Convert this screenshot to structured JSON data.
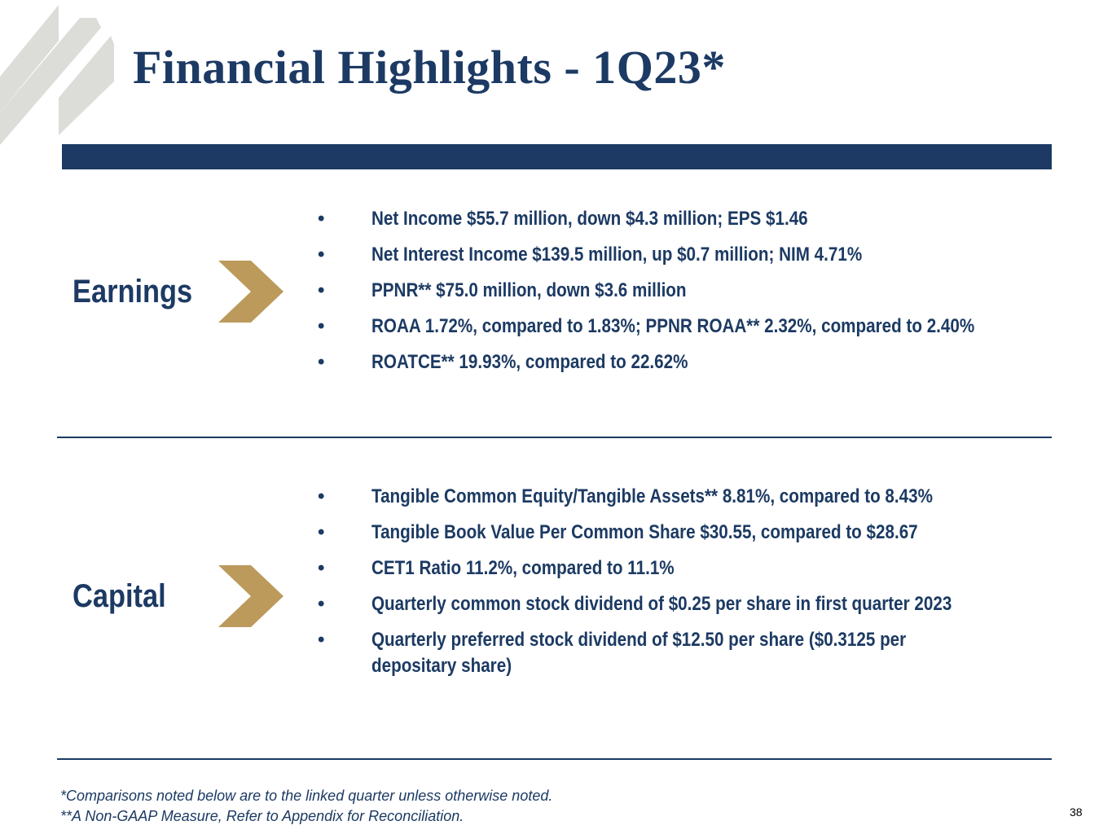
{
  "slide": {
    "title": "Financial Highlights - 1Q23*",
    "page_number": "38"
  },
  "sections": {
    "earnings": {
      "label": "Earnings",
      "bullets": [
        "Net Income $55.7 million, down $4.3 million; EPS $1.46",
        "Net Interest Income $139.5 million, up $0.7 million; NIM 4.71%",
        "PPNR** $75.0 million, down $3.6 million",
        "ROAA 1.72%, compared to 1.83%; PPNR ROAA** 2.32%, compared to 2.40%",
        "ROATCE** 19.93%, compared to 22.62%"
      ]
    },
    "capital": {
      "label": "Capital",
      "bullets": [
        "Tangible Common Equity/Tangible Assets** 8.81%, compared to 8.43%",
        "Tangible Book Value Per Common Share $30.55, compared to $28.67",
        "CET1 Ratio 11.2%, compared to 11.1%",
        "Quarterly common stock dividend of $0.25 per share in first quarter 2023",
        "Quarterly preferred stock dividend of $12.50 per share ($0.3125 per depositary share)"
      ]
    }
  },
  "footnotes": {
    "comparison": "*Comparisons noted below are to the linked quarter unless otherwise noted.",
    "non_gaap": "**A Non-GAAP Measure, Refer to Appendix for Reconciliation."
  },
  "colors": {
    "navy": "#1c3a63",
    "gold": "#bb9a5c",
    "stripe_gray": "#dcdcd8"
  },
  "icons": {
    "logo": "diagonal-stripes-logo",
    "section_marker": "chevron-right-icon"
  }
}
